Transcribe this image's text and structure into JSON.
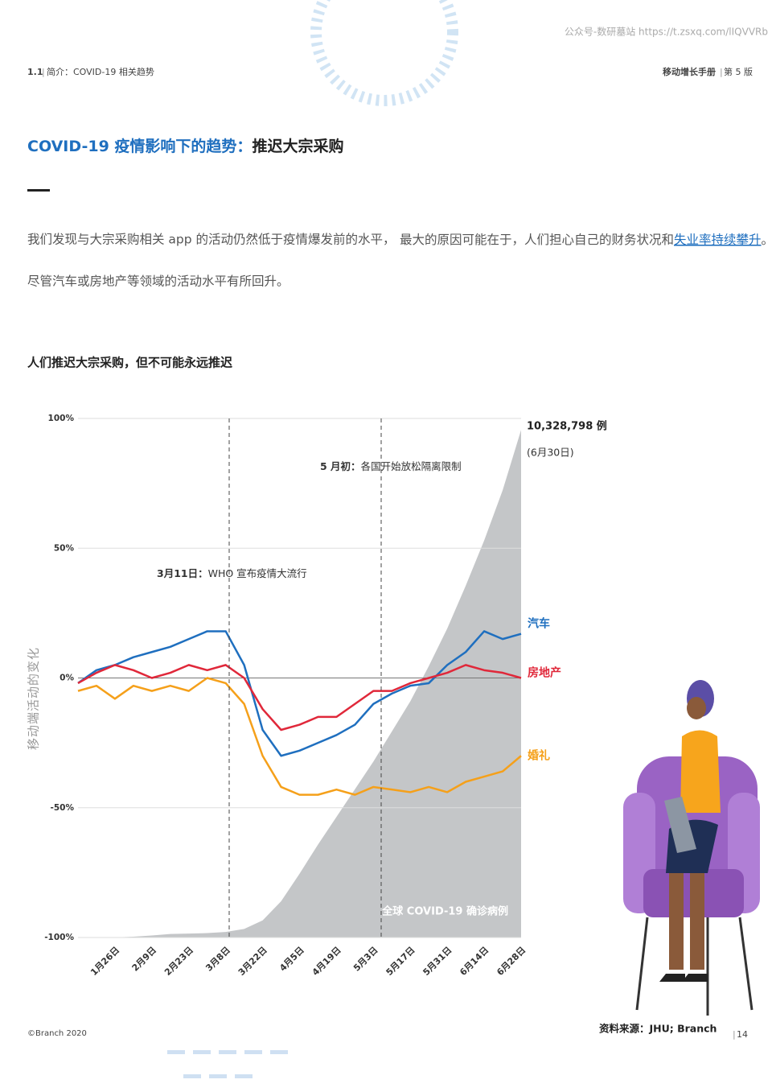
{
  "watermark_top": "公众号-数研墓站 https://t.zsxq.com/lIQVVRb",
  "header": {
    "section": "1.1",
    "section_title": "简介：COVID-19 相关趋势",
    "book": "移动增长手册",
    "edition": "第 5 版"
  },
  "title": {
    "highlight": "COVID-19 疫情影响下的趋势：",
    "rest": "推迟大宗采购"
  },
  "body": {
    "left": [
      "我们发现与大宗采购相关 app 的活动仍然低于疫情爆发前的水平，",
      "尽管汽车或房地产等领域的活动水平有所回升。"
    ],
    "right": {
      "text": "最大的原因可能在于，人们担心自己的财务状况和",
      "link": "失业率持续攀升",
      "end": "。"
    }
  },
  "chart_data": {
    "type": "line",
    "title": "人们推迟大宗采购，但不可能永远推迟",
    "y_label": "移动端活动的变化",
    "categories": [
      null,
      null,
      "1月26日",
      null,
      "2月9日",
      null,
      "2月23日",
      null,
      "3月8日",
      null,
      "3月22日",
      null,
      "4月5日",
      null,
      "4月19日",
      null,
      "5月3日",
      null,
      "5月17日",
      null,
      "5月31日",
      null,
      "6月14日",
      null,
      "6月28日"
    ],
    "ylim": [
      -100,
      100
    ],
    "yticks": [
      {
        "value": -100,
        "label": "-100%"
      },
      {
        "value": -50,
        "label": "-50%"
      },
      {
        "value": 0,
        "label": "0%"
      },
      {
        "value": 50,
        "label": "50%"
      },
      {
        "value": 100,
        "label": "100%"
      }
    ],
    "grid": true,
    "series": [
      {
        "name": "汽车",
        "color": "#1f6fbf",
        "values": [
          -2,
          3,
          5,
          8,
          10,
          12,
          15,
          18,
          18,
          5,
          -20,
          -30,
          -28,
          -25,
          -22,
          -18,
          -10,
          -6,
          -3,
          -2,
          5,
          10,
          18,
          15,
          17
        ]
      },
      {
        "name": "房地产",
        "color": "#e0283a",
        "values": [
          -2,
          2,
          5,
          3,
          0,
          2,
          5,
          3,
          5,
          0,
          -12,
          -20,
          -18,
          -15,
          -15,
          -10,
          -5,
          -5,
          -2,
          0,
          2,
          5,
          3,
          2,
          0
        ]
      },
      {
        "name": "婚礼",
        "color": "#f5a01a",
        "values": [
          -5,
          -3,
          -8,
          -3,
          -5,
          -3,
          -5,
          0,
          -2,
          -10,
          -30,
          -42,
          -45,
          -45,
          -43,
          -45,
          -42,
          -43,
          -44,
          -42,
          -44,
          -40,
          -38,
          -36,
          -30
        ]
      }
    ],
    "cases": {
      "name": "全球 COVID-19 确诊病例",
      "color": "#c4c6c8",
      "values": [
        0,
        300,
        2000,
        17000,
        40000,
        70000,
        79000,
        88000,
        110000,
        170000,
        340000,
        720000,
        1270000,
        1850000,
        2400000,
        2950000,
        3500000,
        4100000,
        4700000,
        5400000,
        6150000,
        7000000,
        7900000,
        8900000,
        10100000
      ],
      "total": {
        "value": 10328798,
        "label": "10,328,798 例",
        "date": "(6月30日)"
      }
    },
    "annotations": [
      {
        "bold": "3月11日：",
        "text": "WHO 宣布疫情大流行"
      },
      {
        "bold": "5 月初：",
        "text": "各国开始放松隔离限制"
      }
    ],
    "source": "资料来源：JHU; Branch"
  },
  "footer": {
    "copyright": "©Branch 2020",
    "page": "14"
  }
}
